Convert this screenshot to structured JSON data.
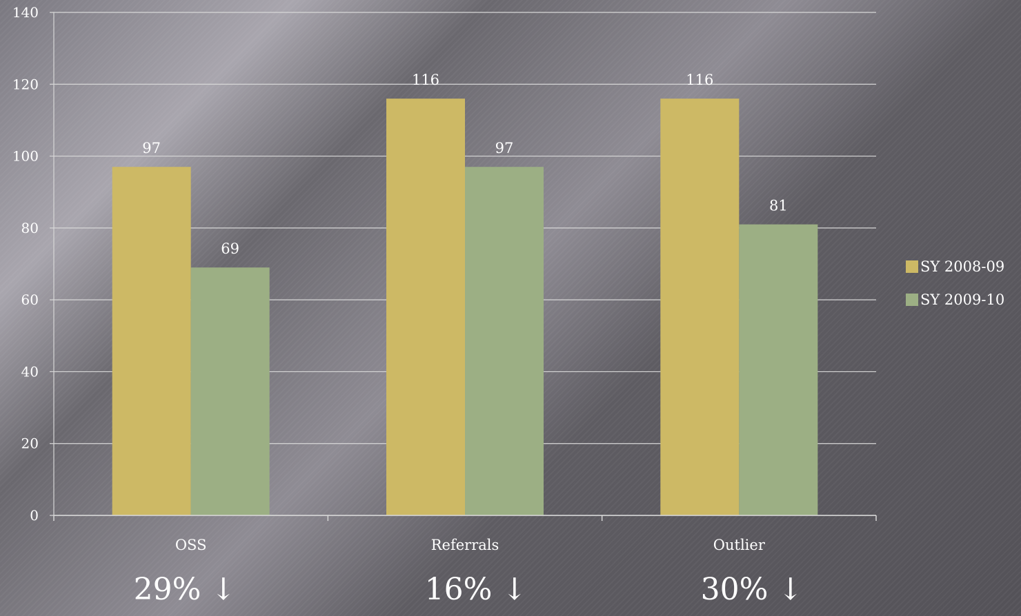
{
  "chart_data": {
    "type": "bar",
    "categories": [
      "OSS",
      "Referrals",
      "Outlier"
    ],
    "series": [
      {
        "name": "SY 2008-09",
        "values": [
          97,
          116,
          116
        ],
        "color": "#cdb965"
      },
      {
        "name": "SY 2009-10",
        "values": [
          69,
          97,
          81
        ],
        "color": "#9caf84"
      }
    ],
    "ylim": [
      0,
      140
    ],
    "yticks": [
      0,
      20,
      40,
      60,
      80,
      100,
      120,
      140
    ],
    "grid": true,
    "legend": "right",
    "data_labels": true
  },
  "annotations": {
    "changes": [
      "29% ↓",
      "16% ↓",
      "30% ↓"
    ]
  },
  "colors": {
    "text": "#ffffff",
    "gridline": "#d8d8d8"
  }
}
